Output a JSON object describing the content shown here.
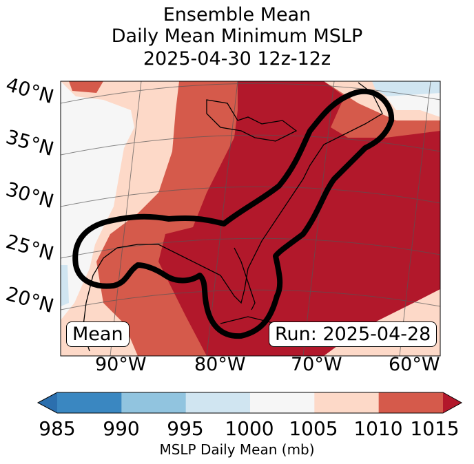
{
  "title": {
    "line1": "Ensemble Mean",
    "line2": "Daily Mean Minimum MSLP",
    "line3": "2025-04-30 12z-12z"
  },
  "lat_labels": [
    "40°N",
    "35°N",
    "30°N",
    "25°N",
    "20°N"
  ],
  "lon_labels": [
    "90°W",
    "80°W",
    "70°W",
    "60°W"
  ],
  "panel_labels": {
    "mean": "Mean",
    "run": "Run: 2025-04-28"
  },
  "colorbar": {
    "ticks": [
      "985",
      "990",
      "995",
      "1000",
      "1005",
      "1010",
      "1015"
    ],
    "label": "MSLP Daily Mean (mb)",
    "colors": [
      "#3a87c1",
      "#91c4df",
      "#d0e5f1",
      "#f6f6f6",
      "#fdd9c8",
      "#d55a4b",
      "#b2182b"
    ]
  },
  "colors": {
    "contour": "#000000"
  }
}
